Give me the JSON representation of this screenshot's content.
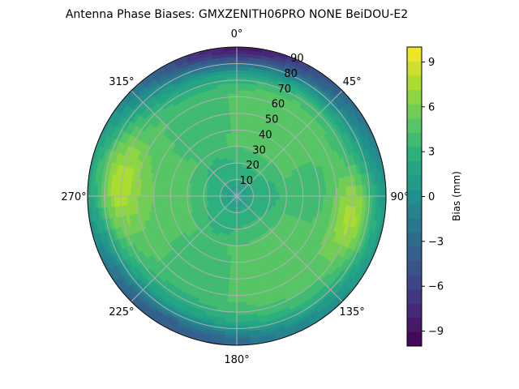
{
  "chart_data": {
    "type": "heatmap",
    "projection": "polar",
    "title": "Antenna Phase Biases: GMXZENITH06PRO  NONE BeiDOU-E2",
    "azimuth_ticks": [
      "0°",
      "45°",
      "90°",
      "135°",
      "180°",
      "225°",
      "270°",
      "315°"
    ],
    "zenith_ticks": [
      "10",
      "20",
      "30",
      "40",
      "50",
      "60",
      "70",
      "80",
      "90"
    ],
    "zenith_range": [
      0,
      90
    ],
    "grid": true,
    "colorbar": {
      "label": "Bias (mm)",
      "range": [
        -10,
        10
      ],
      "ticks": [
        "−9",
        "−6",
        "−3",
        "0",
        "3",
        "6",
        "9"
      ],
      "tick_values": [
        -9,
        -6,
        -3,
        0,
        3,
        6,
        9
      ],
      "colormap": "viridis"
    },
    "field_features": {
      "center_bias_mm": 0,
      "ring_10_30_bias_mm": 2.5,
      "ring_30_60_bias_mm": 4.5,
      "outer_rim_bias_mm": 1.5,
      "zenith_edge_north_bias_mm": -8,
      "east_lobe": {
        "azimuth_deg": 100,
        "zenith_deg": 72,
        "peak_bias_mm": 8.5
      },
      "west_lobe": {
        "azimuth_deg": 277,
        "zenith_deg": 73,
        "peak_bias_mm": 8.0
      }
    }
  }
}
